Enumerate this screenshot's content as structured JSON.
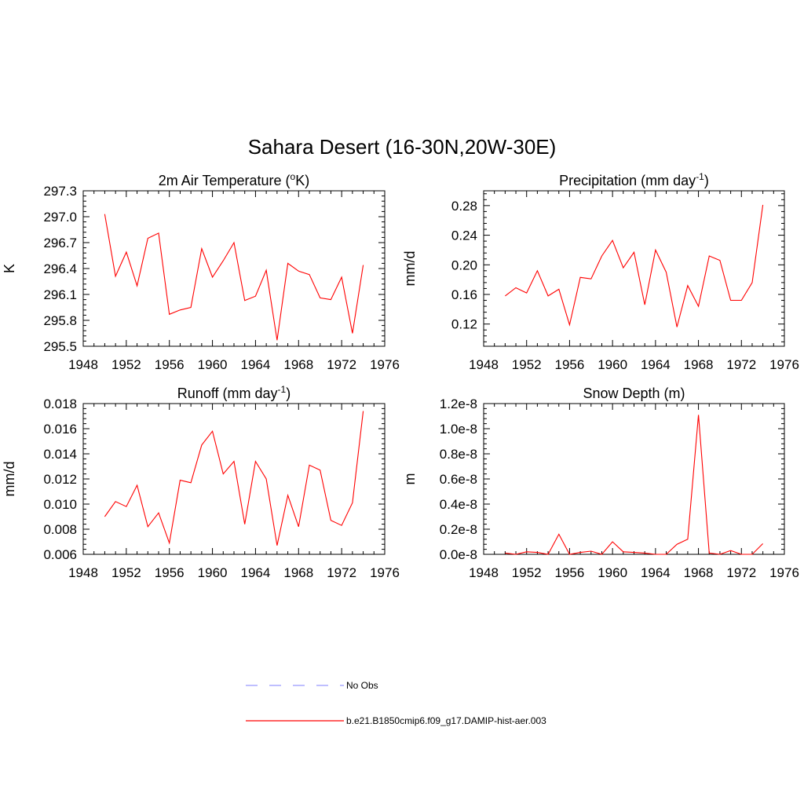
{
  "title": "Sahara Desert (16-30N,20W-30E)",
  "line_color": "#ff0000",
  "obs_color": "#9999ff",
  "legend": {
    "obs_label": "No Obs",
    "model_label": "b.e21.B1850cmip6.f09_g17.DAMIP-hist-aer.003"
  },
  "chart_data": [
    {
      "type": "line",
      "title_main": "2m Air Temperature (",
      "title_sup": "o",
      "title_tail": "K)",
      "ylabel": "K",
      "xlim": [
        1948,
        1976
      ],
      "ylim": [
        295.5,
        297.3
      ],
      "xticks": [
        "1948",
        "1952",
        "1956",
        "1960",
        "1964",
        "1968",
        "1972",
        "1976"
      ],
      "yticks": [
        "295.5",
        "295.8",
        "296.1",
        "296.4",
        "296.7",
        "297.0",
        "297.3"
      ],
      "x": [
        1950,
        1951,
        1952,
        1953,
        1954,
        1955,
        1956,
        1957,
        1958,
        1959,
        1960,
        1961,
        1962,
        1963,
        1964,
        1965,
        1966,
        1967,
        1968,
        1969,
        1970,
        1971,
        1972,
        1973,
        1974
      ],
      "values": [
        297.03,
        296.31,
        296.59,
        296.2,
        296.75,
        296.81,
        295.87,
        295.92,
        295.95,
        296.63,
        296.3,
        296.49,
        296.7,
        296.03,
        296.08,
        296.38,
        295.57,
        296.46,
        296.37,
        296.33,
        296.06,
        296.04,
        296.3,
        295.65,
        296.44
      ]
    },
    {
      "type": "line",
      "title_main": "Precipitation (mm day",
      "title_sup": "-1",
      "title_tail": ")",
      "ylabel": "mm/d",
      "xlim": [
        1948,
        1976
      ],
      "ylim": [
        0.09,
        0.3
      ],
      "xticks": [
        "1948",
        "1952",
        "1956",
        "1960",
        "1964",
        "1968",
        "1972",
        "1976"
      ],
      "yticks": [
        "0.12",
        "0.16",
        "0.20",
        "0.24",
        "0.28"
      ],
      "x": [
        1950,
        1951,
        1952,
        1953,
        1954,
        1955,
        1956,
        1957,
        1958,
        1959,
        1960,
        1961,
        1962,
        1963,
        1964,
        1965,
        1966,
        1967,
        1968,
        1969,
        1970,
        1971,
        1972,
        1973,
        1974
      ],
      "values": [
        0.158,
        0.169,
        0.162,
        0.192,
        0.158,
        0.167,
        0.119,
        0.183,
        0.181,
        0.212,
        0.233,
        0.196,
        0.217,
        0.146,
        0.22,
        0.19,
        0.116,
        0.172,
        0.144,
        0.212,
        0.206,
        0.152,
        0.152,
        0.176,
        0.281
      ]
    },
    {
      "type": "line",
      "title_main": "Runoff (mm day",
      "title_sup": "-1",
      "title_tail": ")",
      "ylabel": "mm/d",
      "xlim": [
        1948,
        1976
      ],
      "ylim": [
        0.006,
        0.018
      ],
      "xticks": [
        "1948",
        "1952",
        "1956",
        "1960",
        "1964",
        "1968",
        "1972",
        "1976"
      ],
      "yticks": [
        "0.006",
        "0.008",
        "0.010",
        "0.012",
        "0.014",
        "0.016",
        "0.018"
      ],
      "x": [
        1950,
        1951,
        1952,
        1953,
        1954,
        1955,
        1956,
        1957,
        1958,
        1959,
        1960,
        1961,
        1962,
        1963,
        1964,
        1965,
        1966,
        1967,
        1968,
        1969,
        1970,
        1971,
        1972,
        1973,
        1974
      ],
      "values": [
        0.009,
        0.0102,
        0.0098,
        0.0115,
        0.0082,
        0.0093,
        0.0069,
        0.0119,
        0.0117,
        0.0147,
        0.0158,
        0.0124,
        0.0134,
        0.0084,
        0.0134,
        0.012,
        0.0067,
        0.0107,
        0.0082,
        0.0131,
        0.0127,
        0.0087,
        0.0083,
        0.0101,
        0.0174
      ]
    },
    {
      "type": "line",
      "title_main": "Snow Depth (m)",
      "title_sup": "",
      "title_tail": "",
      "ylabel": "m",
      "xlim": [
        1948,
        1976
      ],
      "ylim": [
        0,
        1.2e-08
      ],
      "xticks": [
        "1948",
        "1952",
        "1956",
        "1960",
        "1964",
        "1968",
        "1972",
        "1976"
      ],
      "yticks": [
        "0.0e-8",
        "0.2e-8",
        "0.4e-8",
        "0.6e-8",
        "0.8e-8",
        "1.0e-8",
        "1.2e-8"
      ],
      "x": [
        1950,
        1951,
        1952,
        1953,
        1954,
        1955,
        1956,
        1957,
        1958,
        1959,
        1960,
        1961,
        1962,
        1963,
        1964,
        1965,
        1966,
        1967,
        1968,
        1969,
        1970,
        1971,
        1972,
        1973,
        1974
      ],
      "values": [
        1e-10,
        0,
        2e-10,
        1.5e-10,
        0,
        1.6e-09,
        0,
        1.5e-10,
        2.5e-10,
        0,
        1e-09,
        2e-10,
        1.5e-10,
        1e-10,
        0,
        0,
        8e-10,
        1.2e-09,
        1.11e-08,
        1e-10,
        0,
        3e-10,
        0,
        0,
        8.5e-10
      ]
    }
  ]
}
